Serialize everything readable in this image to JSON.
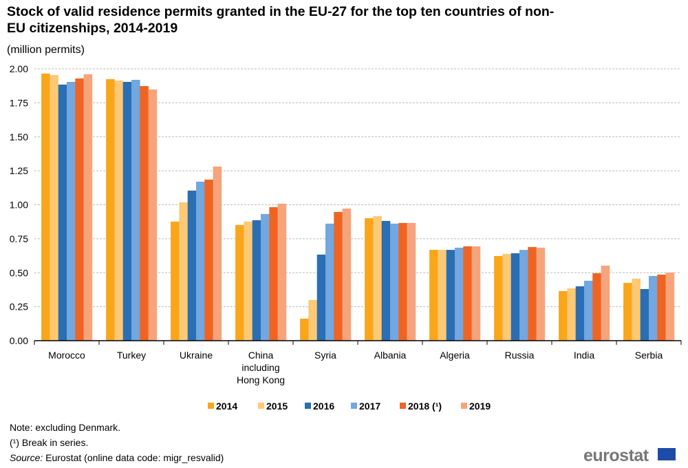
{
  "chart_data": {
    "type": "bar",
    "title": "Stock of valid residence permits granted in the EU-27 for the top ten countries of non-EU citizenships, 2014-2019",
    "subtitle": "(million permits)",
    "xlabel": "",
    "ylabel": "",
    "ylim": [
      0,
      2
    ],
    "yticks": [
      "0.00",
      "0.25",
      "0.50",
      "0.75",
      "1.00",
      "1.25",
      "1.50",
      "1.75",
      "2.00"
    ],
    "grid": true,
    "legend_position": "bottom",
    "categories": [
      "Morocco",
      "Turkey",
      "Ukraine",
      "China including Hong Kong",
      "Syria",
      "Albania",
      "Algeria",
      "Russia",
      "India",
      "Serbia"
    ],
    "category_lines": [
      [
        "Morocco"
      ],
      [
        "Turkey"
      ],
      [
        "Ukraine"
      ],
      [
        "China",
        "including",
        "Hong Kong"
      ],
      [
        "Syria"
      ],
      [
        "Albania"
      ],
      [
        "Algeria"
      ],
      [
        "Russia"
      ],
      [
        "India"
      ],
      [
        "Serbia"
      ]
    ],
    "series": [
      {
        "name": "2014",
        "color": "#faa61a",
        "values": [
          1.965,
          1.924,
          0.876,
          0.851,
          0.162,
          0.901,
          0.668,
          0.623,
          0.365,
          0.425
        ]
      },
      {
        "name": "2015",
        "color": "#fdc974",
        "values": [
          1.954,
          1.914,
          1.018,
          0.876,
          0.299,
          0.916,
          0.668,
          0.638,
          0.385,
          0.456
        ]
      },
      {
        "name": "2016",
        "color": "#2a6eb4",
        "values": [
          1.884,
          1.904,
          1.104,
          0.886,
          0.633,
          0.881,
          0.668,
          0.643,
          0.4,
          0.38
        ]
      },
      {
        "name": "2017",
        "color": "#72a7df",
        "values": [
          1.904,
          1.919,
          1.17,
          0.932,
          0.861,
          0.861,
          0.684,
          0.668,
          0.441,
          0.476
        ]
      },
      {
        "name": "2018 (¹)",
        "color": "#f06423",
        "values": [
          1.929,
          1.873,
          1.185,
          0.982,
          0.947,
          0.866,
          0.694,
          0.689,
          0.496,
          0.486
        ]
      },
      {
        "name": "2019",
        "color": "#f6a47c",
        "values": [
          1.96,
          1.848,
          1.281,
          1.008,
          0.972,
          0.866,
          0.694,
          0.684,
          0.552,
          0.501
        ]
      }
    ]
  },
  "notes": {
    "note": "Note: excluding Denmark.",
    "break": "(¹) Break in series.",
    "source_label": "Source:",
    "source_text": " Eurostat (online data code: migr_resvalid)"
  },
  "logo": {
    "text": "eurostat"
  }
}
